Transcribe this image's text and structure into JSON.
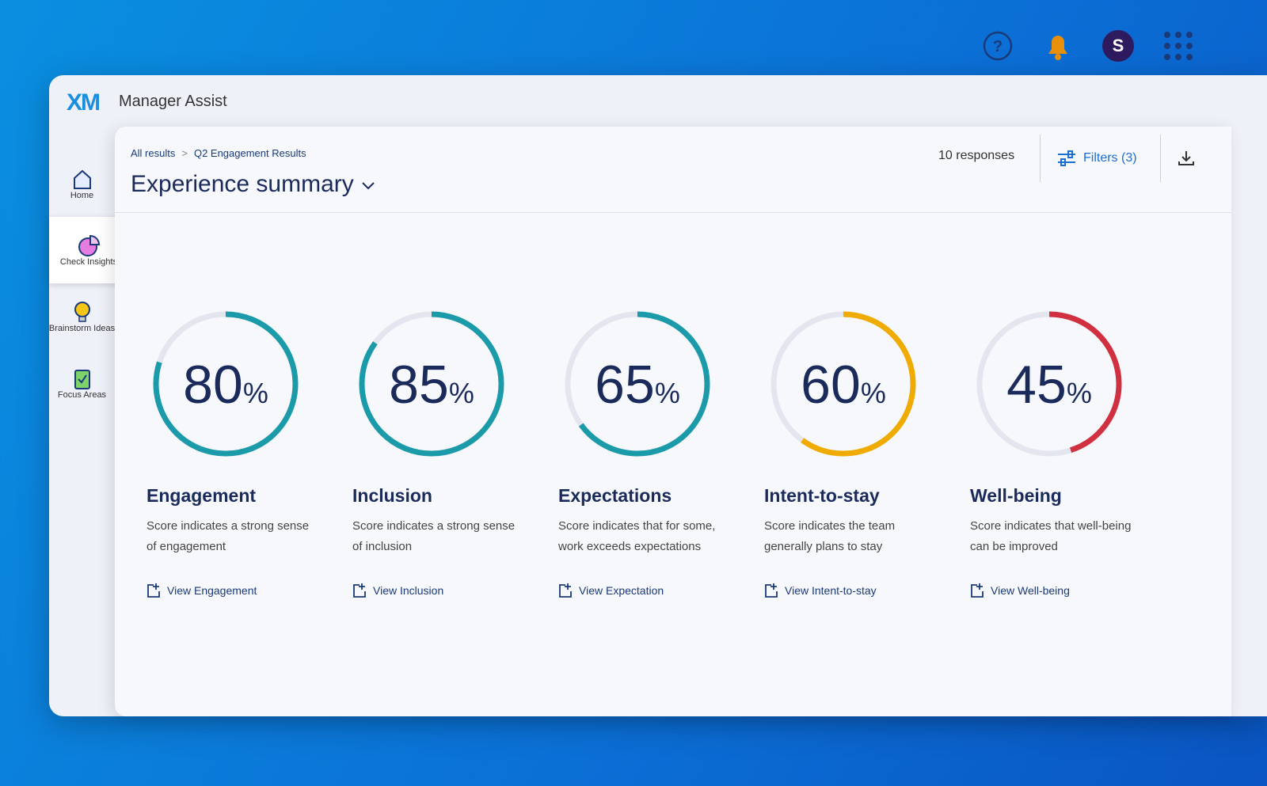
{
  "app": {
    "logo": "XM",
    "name": "Manager Assist",
    "avatar": "S"
  },
  "nav": [
    {
      "label": "Home"
    },
    {
      "label": "Check Insights"
    },
    {
      "label": "Brainstorm Ideas"
    },
    {
      "label": "Focus Areas"
    }
  ],
  "header": {
    "breadcrumb": [
      "All results",
      "Q2 Engagement Results"
    ],
    "title": "Experience summary",
    "responses": "10 responses",
    "filters": "Filters (3)"
  },
  "score_unit": "%",
  "score_range": [
    0,
    100
  ],
  "cards": [
    {
      "name": "Engagement",
      "score": 80,
      "color": "#1b9aaa",
      "description": "Score indicates a strong sense of engagement",
      "link": "View Engagement"
    },
    {
      "name": "Inclusion",
      "score": 85,
      "color": "#1b9aaa",
      "description": "Score indicates a strong sense of inclusion",
      "link": "View Inclusion"
    },
    {
      "name": "Expectations",
      "score": 65,
      "color": "#1b9aaa",
      "description": "Score indicates that for some, work exceeds expectations",
      "link": "View Expectation"
    },
    {
      "name": "Intent-to-stay",
      "score": 60,
      "color": "#f0ab00",
      "description": "Score indicates the team generally plans to stay",
      "link": "View Intent-to-stay"
    },
    {
      "name": "Well-being",
      "score": 45,
      "color": "#d0303f",
      "description": "Score indicates that well-being can be improved",
      "link": "View Well-being"
    }
  ]
}
